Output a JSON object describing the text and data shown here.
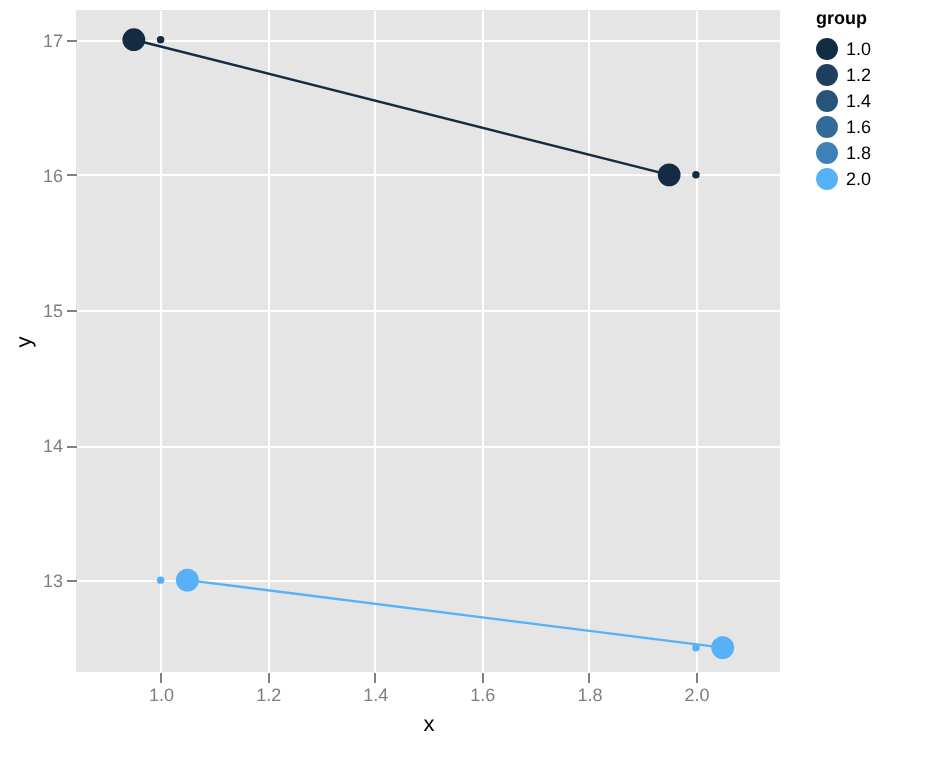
{
  "chart_data": {
    "type": "line",
    "xlabel": "x",
    "ylabel": "y",
    "legend_title": "group",
    "legend": "right",
    "grid": true,
    "marker": "circle",
    "xlim": [
      0.842,
      2.157
    ],
    "xticks": [
      {
        "value": 1,
        "label": "1.0"
      },
      {
        "value": 1.2,
        "label": "1.2"
      },
      {
        "value": 1.4,
        "label": "1.4"
      },
      {
        "value": 1.6,
        "label": "1.6"
      },
      {
        "value": 1.8,
        "label": "1.8"
      },
      {
        "value": 2,
        "label": "2.0"
      }
    ],
    "ylim": [
      12.32,
      17.22
    ],
    "yticks": [
      13,
      14,
      15,
      16,
      17
    ],
    "series": [
      {
        "name": "1.0",
        "color": "#132b43",
        "x": [
          0.95,
          1.95
        ],
        "values": [
          17,
          16
        ]
      },
      {
        "name": "1.2",
        "color": "#1e3f5f"
      },
      {
        "name": "1.4",
        "color": "#285479"
      },
      {
        "name": "1.6",
        "color": "#336a98"
      },
      {
        "name": "1.8",
        "color": "#3e81b7"
      },
      {
        "name": "2.0",
        "color": "#56b1f7",
        "x": [
          1.05,
          2.05
        ],
        "values": [
          13,
          12.5
        ]
      },
      {
        "color": "#132b43",
        "type": "scatter",
        "x": [
          1,
          2
        ],
        "values": [
          17,
          16
        ]
      },
      {
        "color": "#56b1f7",
        "type": "scatter",
        "x": [
          1,
          2
        ],
        "values": [
          13,
          12.5
        ]
      }
    ]
  }
}
